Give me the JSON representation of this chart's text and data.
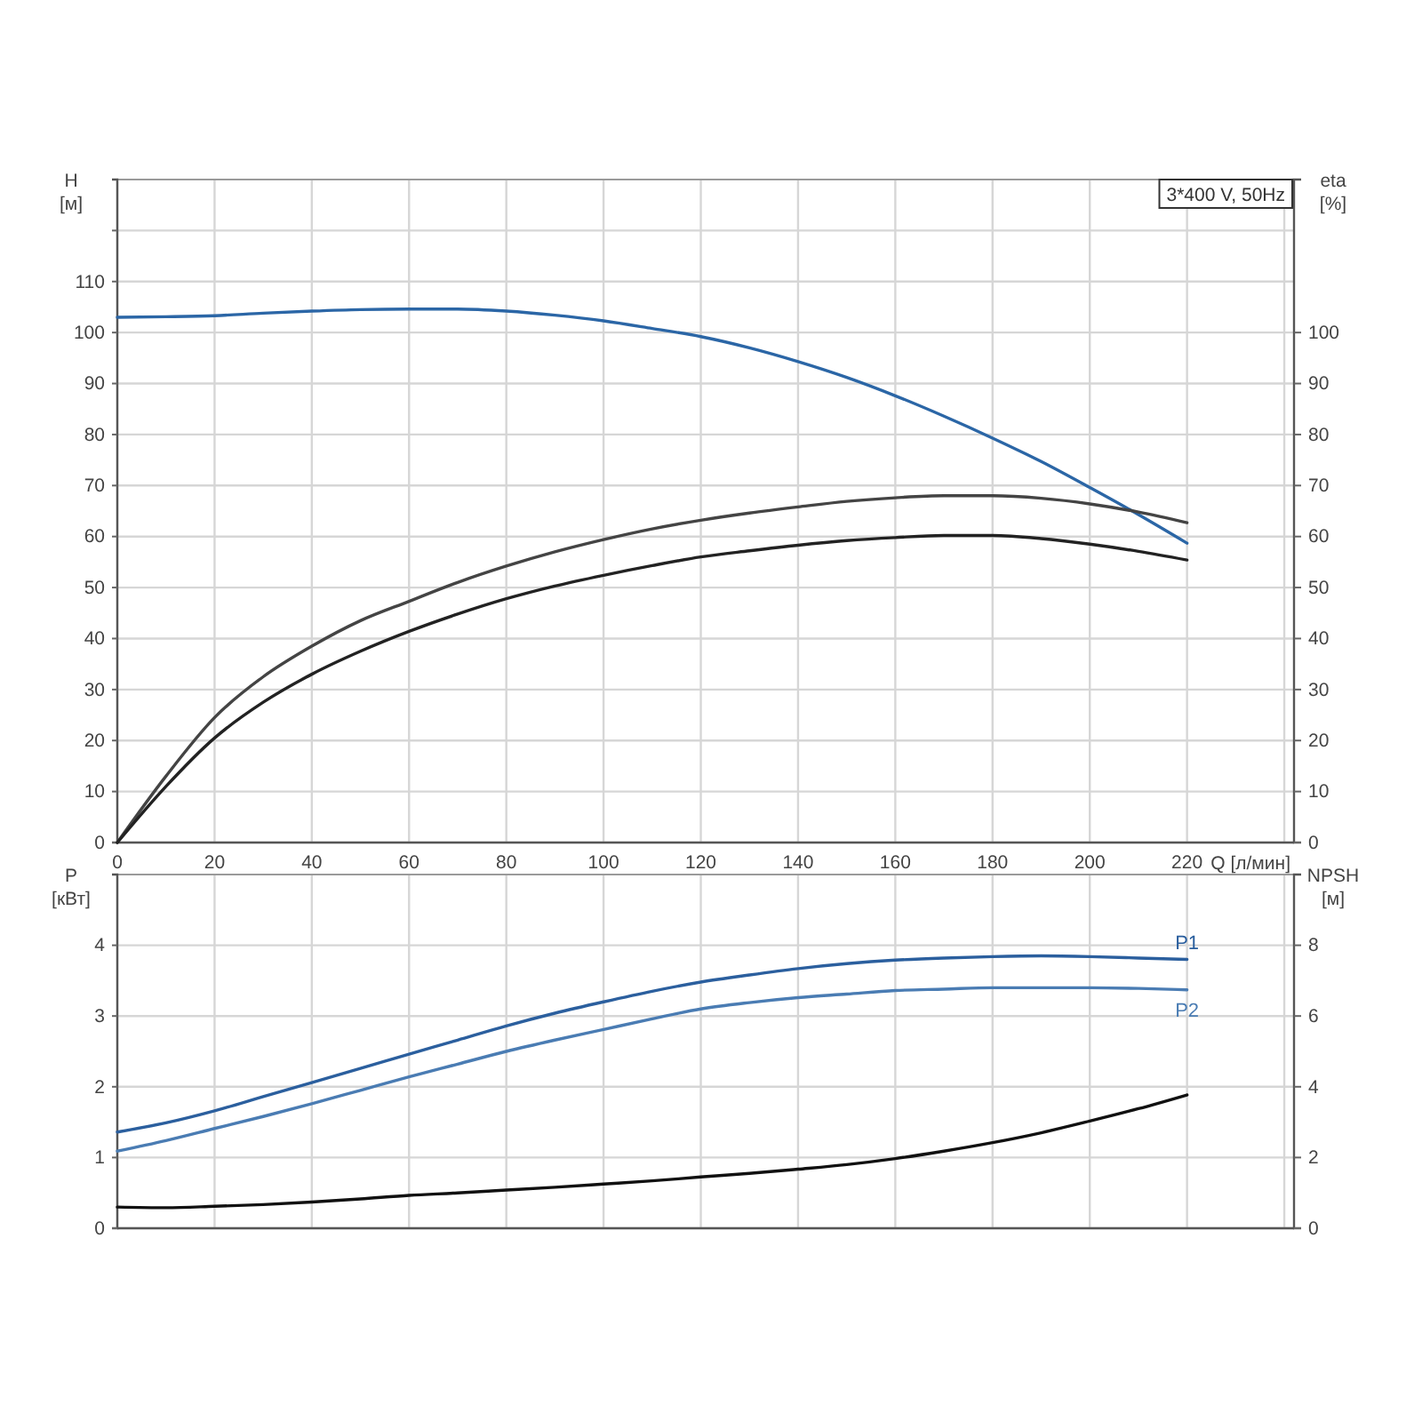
{
  "chart_data": [
    {
      "type": "line",
      "title": "3*400 V, 50Hz",
      "xlabel": "Q [л/мин]",
      "ylabel": "H [м]",
      "y2label": "eta [%]",
      "x": [
        0,
        10,
        20,
        30,
        40,
        50,
        60,
        70,
        80,
        90,
        100,
        110,
        120,
        130,
        140,
        150,
        160,
        170,
        180,
        190,
        200,
        210,
        220
      ],
      "xlim": [
        0,
        242
      ],
      "xticks": [
        0,
        20,
        40,
        60,
        80,
        100,
        120,
        140,
        160,
        180,
        200,
        220,
        {
          "value": 240,
          "label": null
        }
      ],
      "ylim": [
        0,
        130
      ],
      "yticks": [
        0,
        10,
        20,
        30,
        40,
        50,
        60,
        70,
        80,
        90,
        100,
        110,
        {
          "value": 120,
          "label": null
        }
      ],
      "y2lim": [
        0,
        130
      ],
      "y2ticks": [
        0,
        10,
        20,
        30,
        40,
        50,
        60,
        70,
        80,
        90,
        100
      ],
      "grid": true,
      "series": [
        {
          "color": "#2b66a6",
          "values": [
            103,
            103.1,
            103.3,
            103.8,
            104.2,
            104.5,
            104.6,
            104.6,
            104.2,
            103.4,
            102.3,
            100.8,
            99.2,
            97,
            94.3,
            91.2,
            87.6,
            83.6,
            79.3,
            74.7,
            69.6,
            64.3,
            58.7
          ]
        },
        {
          "color": "#444444",
          "axis": "y2",
          "values": [
            0,
            13,
            24.5,
            32.5,
            38.5,
            43.5,
            47.3,
            51,
            54.2,
            57,
            59.4,
            61.5,
            63.2,
            64.6,
            65.8,
            66.9,
            67.6,
            68,
            68,
            67.5,
            66.4,
            64.8,
            62.7
          ]
        },
        {
          "color": "#222222",
          "axis": "y2",
          "values": [
            0,
            11,
            20.5,
            27.5,
            33,
            37.5,
            41.4,
            44.8,
            47.8,
            50.3,
            52.4,
            54.3,
            56,
            57.2,
            58.3,
            59.2,
            59.8,
            60.2,
            60.2,
            59.6,
            58.5,
            57.1,
            55.4
          ]
        }
      ]
    },
    {
      "type": "line",
      "ylabel": "P [кВт]",
      "y2label": "NPSH [м]",
      "x": [
        0,
        10,
        20,
        30,
        40,
        50,
        60,
        70,
        80,
        90,
        100,
        110,
        120,
        130,
        140,
        150,
        160,
        170,
        180,
        190,
        200,
        210,
        220
      ],
      "xlim": [
        0,
        242
      ],
      "xticks": [
        0,
        20,
        40,
        60,
        80,
        100,
        120,
        140,
        160,
        180,
        200,
        220,
        240
      ],
      "ylim": [
        0,
        5
      ],
      "yticks": [
        0,
        1,
        2,
        3,
        4
      ],
      "y2lim": [
        0,
        10
      ],
      "y2ticks": [
        0,
        2,
        4,
        6,
        8
      ],
      "grid": true,
      "tick_labels": "y",
      "series": [
        {
          "name": "P1",
          "color": "#2b5f9e",
          "values": [
            1.36,
            1.49,
            1.66,
            1.86,
            2.06,
            2.26,
            2.46,
            2.66,
            2.86,
            3.04,
            3.2,
            3.35,
            3.48,
            3.58,
            3.67,
            3.74,
            3.79,
            3.82,
            3.84,
            3.85,
            3.84,
            3.82,
            3.8
          ]
        },
        {
          "name": "P2",
          "color": "#4a7cb3",
          "values": [
            1.09,
            1.24,
            1.41,
            1.58,
            1.76,
            1.95,
            2.14,
            2.32,
            2.5,
            2.66,
            2.81,
            2.96,
            3.1,
            3.19,
            3.26,
            3.31,
            3.36,
            3.38,
            3.4,
            3.4,
            3.4,
            3.39,
            3.37
          ]
        },
        {
          "color": "#111111",
          "axis": "y2",
          "values": [
            0.6,
            0.58,
            0.62,
            0.67,
            0.74,
            0.83,
            0.93,
            1.0,
            1.08,
            1.16,
            1.25,
            1.34,
            1.45,
            1.55,
            1.67,
            1.8,
            1.97,
            2.18,
            2.42,
            2.7,
            3.03,
            3.38,
            3.77
          ]
        }
      ]
    }
  ]
}
